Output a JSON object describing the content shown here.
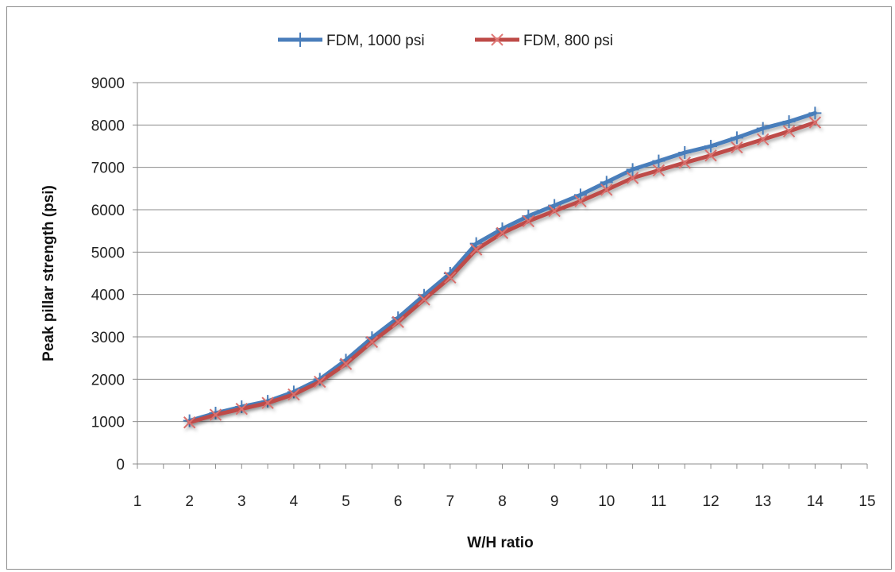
{
  "chart_data": {
    "type": "line",
    "title": "",
    "xlabel": "W/H ratio",
    "ylabel": "Peak pillar strength (psi)",
    "xlim": [
      1,
      15
    ],
    "ylim": [
      0,
      9000
    ],
    "xticks": [
      1,
      2,
      3,
      4,
      5,
      6,
      7,
      8,
      9,
      10,
      11,
      12,
      13,
      14,
      15
    ],
    "yticks": [
      0,
      1000,
      2000,
      3000,
      4000,
      5000,
      6000,
      7000,
      8000,
      9000
    ],
    "grid": "horizontal",
    "legend_position": "top-center",
    "x": [
      2,
      2.5,
      3,
      3.5,
      4,
      4.5,
      5,
      5.5,
      6,
      6.5,
      7,
      7.5,
      8,
      8.5,
      9,
      9.5,
      10,
      10.5,
      11,
      11.5,
      12,
      12.5,
      13,
      13.5,
      14
    ],
    "series": [
      {
        "name": "FDM, 1000 psi",
        "color": "#4a7ebb",
        "marker": "plus",
        "values": [
          1020,
          1200,
          1350,
          1480,
          1700,
          2000,
          2450,
          2980,
          3450,
          3980,
          4500,
          5200,
          5550,
          5850,
          6100,
          6350,
          6650,
          6950,
          7150,
          7350,
          7500,
          7700,
          7920,
          8080,
          8280
        ]
      },
      {
        "name": "FDM, 800 psi",
        "color": "#be4b48",
        "marker": "x",
        "values": [
          980,
          1160,
          1300,
          1440,
          1640,
          1940,
          2360,
          2880,
          3350,
          3880,
          4400,
          5060,
          5450,
          5730,
          5970,
          6200,
          6470,
          6750,
          6930,
          7110,
          7280,
          7470,
          7660,
          7850,
          8060
        ]
      }
    ]
  }
}
